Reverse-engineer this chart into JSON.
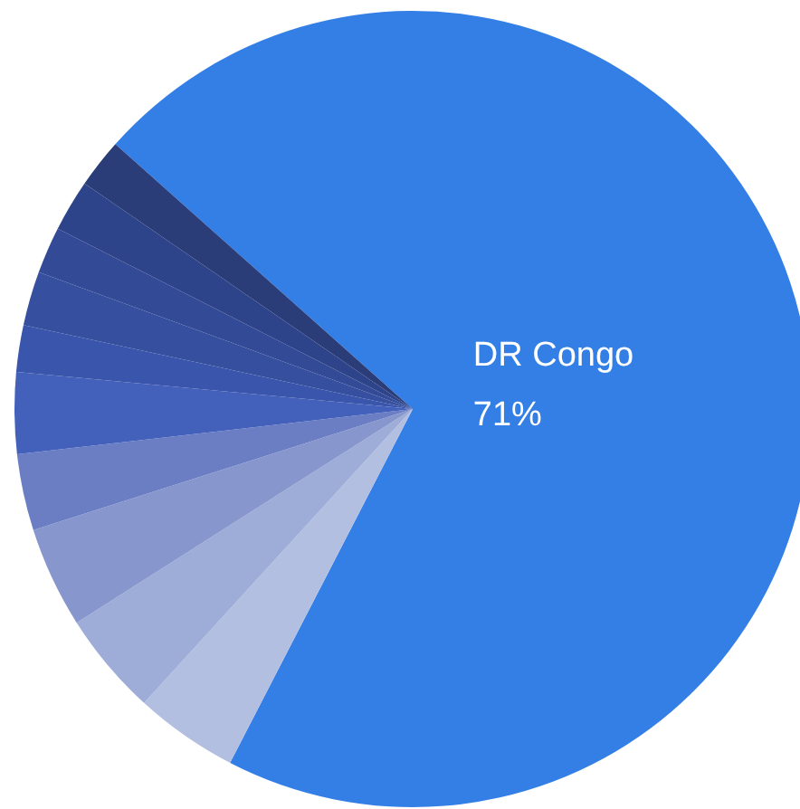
{
  "chart_data": {
    "type": "pie",
    "categories": [
      "DR Congo",
      null,
      null,
      null,
      null,
      null,
      null,
      null,
      null,
      null,
      null
    ],
    "values": [
      71,
      4.2,
      4.2,
      4.1,
      3.1,
      3.3,
      1.9,
      2.2,
      1.9,
      2.1,
      2.0
    ],
    "value_labels": [
      "71%",
      null,
      null,
      null,
      null,
      null,
      null,
      null,
      null,
      null,
      null
    ],
    "colors": [
      "#347fe6",
      "#b3bfe0",
      "#9eacd8",
      "#8796cc",
      "#6b7ec4",
      "#4360bb",
      "#3a55ac",
      "#36509f",
      "#334a96",
      "#2e448a",
      "#2b3d79"
    ],
    "legend": false
  }
}
